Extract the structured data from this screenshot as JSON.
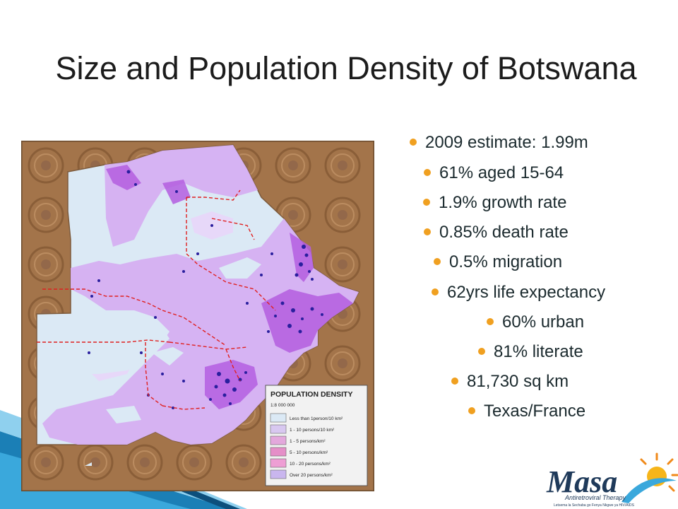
{
  "slide": {
    "title": "Size and Population Density of Botswana"
  },
  "bullets": [
    "2009 estimate: 1.99m",
    "61% aged 15-64",
    "1.9% growth rate",
    "0.85% death rate",
    "0.5% migration",
    "62yrs life expectancy",
    "60% urban",
    "81% literate",
    "81,730 sq km",
    "Texas/France"
  ],
  "map": {
    "legend": {
      "title": "POPULATION DENSITY",
      "scale": "1:8 000 000",
      "items": [
        {
          "label": "Less than 1person/10 km²",
          "color": "#dbe9f5"
        },
        {
          "label": "1 - 10 persons/10 km²",
          "color": "#d8c8f0"
        },
        {
          "label": "1 - 5 persons/km²",
          "color": "#e3a8dc"
        },
        {
          "label": "5 - 10 persons/km²",
          "color": "#e58fc8"
        },
        {
          "label": "10 - 20 persons/km²",
          "color": "#ee9ed4"
        },
        {
          "label": "Over 20 persons/km²",
          "color": "#c9b6ee"
        }
      ]
    },
    "colors": {
      "background": "#a3744a",
      "low": "#dbe9f5",
      "medium": "#d6b0f2",
      "high": "#b45ee0",
      "dense": "#2a1f9e",
      "border": "#e02020"
    }
  },
  "logo": {
    "name": "Masa",
    "subtitle": "Antiretroviral Therapy",
    "tagline": "Letsema la Sechaba go Fenya Nkgwe ya HIV/AIDS"
  }
}
